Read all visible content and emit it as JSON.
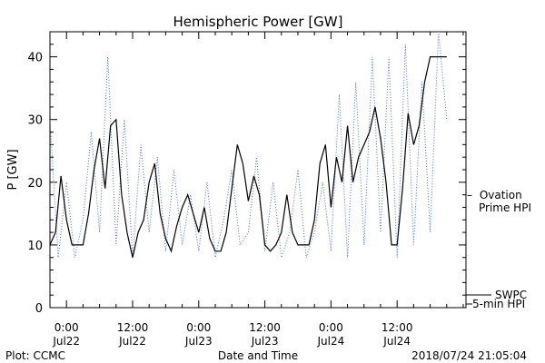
{
  "chart_data": {
    "type": "line",
    "title": "Hemispheric Power [GW]",
    "xlabel": "Date and Time",
    "ylabel": "P [GW]",
    "ylim": [
      0,
      44
    ],
    "xlim": [
      "2018-07-21 21:00",
      "2018-07-25 00:30"
    ],
    "yticks": [
      0,
      10,
      20,
      30,
      40
    ],
    "xticks": [
      {
        "x": "2018-07-22 00:00",
        "line1": "0:00",
        "line2": "Jul22"
      },
      {
        "x": "2018-07-22 12:00",
        "line1": "12:00",
        "line2": "Jul22"
      },
      {
        "x": "2018-07-23 00:00",
        "line1": "0:00",
        "line2": "Jul23"
      },
      {
        "x": "2018-07-23 12:00",
        "line1": "12:00",
        "line2": "Jul23"
      },
      {
        "x": "2018-07-24 00:00",
        "line1": "0:00",
        "line2": "Jul24"
      },
      {
        "x": "2018-07-24 12:00",
        "line1": "12:00",
        "line2": "Jul24"
      }
    ],
    "grid": false,
    "legend_position": "right",
    "series": [
      {
        "name": "Ovation Prime HPI",
        "legend_prefix": "–",
        "legend_line2": "Prime HPI",
        "style": "dotted",
        "color": "#3a6fd8",
        "x": [
          "2018-07-21 21:00",
          "2018-07-21 22:30",
          "2018-07-22 00:00",
          "2018-07-22 01:30",
          "2018-07-22 03:00",
          "2018-07-22 04:30",
          "2018-07-22 06:00",
          "2018-07-22 07:30",
          "2018-07-22 09:00",
          "2018-07-22 10:30",
          "2018-07-22 12:00",
          "2018-07-22 13:30",
          "2018-07-22 15:00",
          "2018-07-22 16:30",
          "2018-07-22 18:00",
          "2018-07-22 19:30",
          "2018-07-22 21:00",
          "2018-07-22 22:30",
          "2018-07-23 00:00",
          "2018-07-23 01:30",
          "2018-07-23 03:00",
          "2018-07-23 04:30",
          "2018-07-23 06:00",
          "2018-07-23 07:30",
          "2018-07-23 09:00",
          "2018-07-23 10:30",
          "2018-07-23 12:00",
          "2018-07-23 13:30",
          "2018-07-23 15:00",
          "2018-07-23 16:30",
          "2018-07-23 18:00",
          "2018-07-23 19:30",
          "2018-07-23 21:00",
          "2018-07-23 22:30",
          "2018-07-24 00:00",
          "2018-07-24 01:30",
          "2018-07-24 03:00",
          "2018-07-24 04:30",
          "2018-07-24 06:00",
          "2018-07-24 07:30",
          "2018-07-24 09:00",
          "2018-07-24 10:30",
          "2018-07-24 12:00",
          "2018-07-24 13:30",
          "2018-07-24 15:00",
          "2018-07-24 16:30",
          "2018-07-24 18:00",
          "2018-07-24 19:30",
          "2018-07-24 21:00"
        ],
        "values": [
          30,
          8,
          20,
          8,
          14,
          28,
          12,
          40,
          10,
          30,
          8,
          26,
          12,
          24,
          9,
          22,
          10,
          18,
          9,
          20,
          8,
          14,
          22,
          10,
          12,
          24,
          9,
          20,
          8,
          12,
          22,
          8,
          12,
          20,
          9,
          34,
          8,
          36,
          10,
          40,
          12,
          40,
          8,
          42,
          10,
          36,
          12,
          44,
          30
        ]
      },
      {
        "name": "SWPC 5-min HPI",
        "legend_line1": "SWPC",
        "legend_line2": "5-min HPI",
        "style": "solid",
        "color": "#000000",
        "x": [
          "2018-07-21 21:00",
          "2018-07-21 22:00",
          "2018-07-21 23:00",
          "2018-07-22 00:00",
          "2018-07-22 01:00",
          "2018-07-22 02:00",
          "2018-07-22 03:00",
          "2018-07-22 04:00",
          "2018-07-22 05:00",
          "2018-07-22 06:00",
          "2018-07-22 07:00",
          "2018-07-22 08:00",
          "2018-07-22 09:00",
          "2018-07-22 10:00",
          "2018-07-22 11:00",
          "2018-07-22 12:00",
          "2018-07-22 13:00",
          "2018-07-22 14:00",
          "2018-07-22 15:00",
          "2018-07-22 16:00",
          "2018-07-22 17:00",
          "2018-07-22 18:00",
          "2018-07-22 19:00",
          "2018-07-22 20:00",
          "2018-07-22 21:00",
          "2018-07-22 22:00",
          "2018-07-22 23:00",
          "2018-07-23 00:00",
          "2018-07-23 01:00",
          "2018-07-23 02:00",
          "2018-07-23 03:00",
          "2018-07-23 04:00",
          "2018-07-23 05:00",
          "2018-07-23 06:00",
          "2018-07-23 07:00",
          "2018-07-23 08:00",
          "2018-07-23 09:00",
          "2018-07-23 10:00",
          "2018-07-23 11:00",
          "2018-07-23 12:00",
          "2018-07-23 13:00",
          "2018-07-23 14:00",
          "2018-07-23 15:00",
          "2018-07-23 16:00",
          "2018-07-23 17:00",
          "2018-07-23 18:00",
          "2018-07-23 19:00",
          "2018-07-23 20:00",
          "2018-07-23 21:00",
          "2018-07-23 22:00",
          "2018-07-23 23:00",
          "2018-07-24 00:00",
          "2018-07-24 01:00",
          "2018-07-24 02:00",
          "2018-07-24 03:00",
          "2018-07-24 04:00",
          "2018-07-24 05:00",
          "2018-07-24 06:00",
          "2018-07-24 07:00",
          "2018-07-24 08:00",
          "2018-07-24 09:00",
          "2018-07-24 10:00",
          "2018-07-24 11:00",
          "2018-07-24 12:00",
          "2018-07-24 13:00",
          "2018-07-24 14:00",
          "2018-07-24 15:00",
          "2018-07-24 16:00",
          "2018-07-24 17:00",
          "2018-07-24 18:00",
          "2018-07-24 19:00",
          "2018-07-24 20:00",
          "2018-07-24 21:00"
        ],
        "values": [
          10,
          12,
          21,
          14,
          10,
          10,
          10,
          15,
          22,
          27,
          19,
          29,
          30,
          18,
          12,
          8,
          12,
          14,
          20,
          23,
          15,
          11,
          9,
          13,
          16,
          18,
          15,
          12,
          16,
          11,
          9,
          9,
          12,
          19,
          26,
          23,
          17,
          21,
          18,
          10,
          9,
          10,
          12,
          18,
          12,
          10,
          10,
          10,
          14,
          23,
          26,
          16,
          24,
          20,
          29,
          20,
          24,
          26,
          28,
          32,
          27,
          20,
          10,
          10,
          19,
          31,
          26,
          29,
          36,
          40,
          40,
          40,
          40
        ]
      }
    ]
  },
  "footer": {
    "left": "Plot: CCMC",
    "center": "Date and Time",
    "right": "2018/07/24 21:05:04"
  }
}
